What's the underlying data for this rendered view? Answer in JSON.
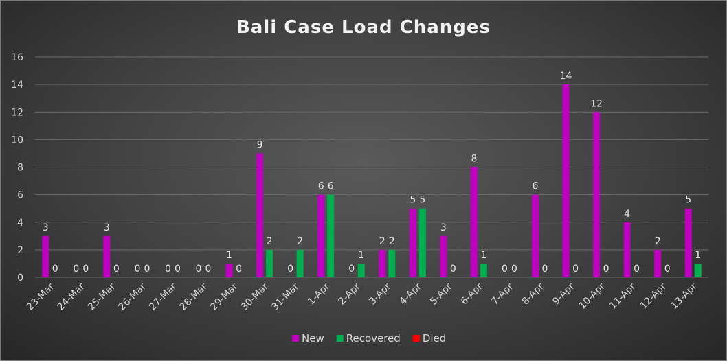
{
  "chart_data": {
    "type": "bar",
    "title": "Bali Case Load Changes",
    "xlabel": "",
    "ylabel": "",
    "ylim": [
      0,
      16
    ],
    "yticks": [
      0,
      2,
      4,
      6,
      8,
      10,
      12,
      14,
      16
    ],
    "grid": true,
    "legend_position": "bottom",
    "categories": [
      "23-Mar",
      "24-Mar",
      "25-Mar",
      "26-Mar",
      "27-Mar",
      "28-Mar",
      "29-Mar",
      "30-Mar",
      "31-Mar",
      "1-Apr",
      "2-Apr",
      "3-Apr",
      "4-Apr",
      "5-Apr",
      "6-Apr",
      "7-Apr",
      "8-Apr",
      "9-Apr",
      "10-Apr",
      "11-Apr",
      "12-Apr",
      "13-Apr"
    ],
    "series": [
      {
        "name": "New",
        "color": "#c000c0",
        "values": [
          3,
          0,
          3,
          0,
          0,
          0,
          1,
          9,
          0,
          6,
          0,
          2,
          5,
          3,
          8,
          0,
          6,
          14,
          12,
          4,
          2,
          5
        ]
      },
      {
        "name": "Recovered",
        "color": "#00b050",
        "values": [
          0,
          0,
          0,
          0,
          0,
          0,
          0,
          2,
          2,
          6,
          1,
          2,
          5,
          0,
          1,
          0,
          0,
          0,
          0,
          0,
          0,
          1
        ]
      },
      {
        "name": "Died",
        "color": "#ff0000",
        "values": [
          null,
          null,
          null,
          null,
          null,
          null,
          null,
          null,
          null,
          null,
          null,
          null,
          null,
          null,
          null,
          null,
          null,
          null,
          null,
          null,
          null,
          null
        ]
      }
    ]
  }
}
